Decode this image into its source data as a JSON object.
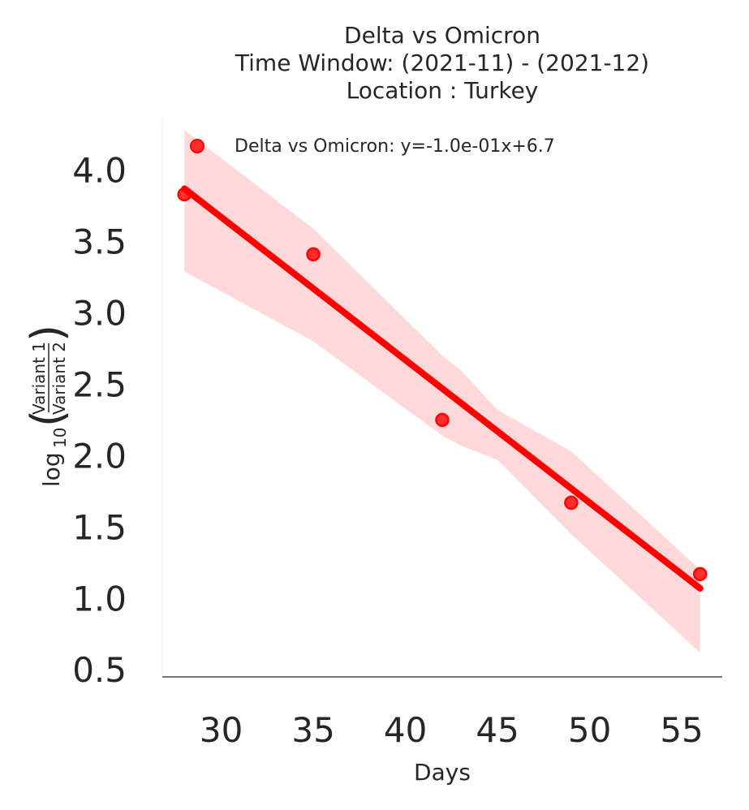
{
  "chart_data": {
    "type": "scatter",
    "title_lines": [
      "Delta vs Omicron",
      "Time Window: (2021-11) - (2021-12)",
      "Location : Turkey"
    ],
    "xlabel": "Days",
    "ylabel": {
      "prefix": "log",
      "subscript": "10",
      "numerator": "Variant 1",
      "denominator": "Variant 2"
    },
    "xlim": [
      26.8,
      57.2
    ],
    "ylim": [
      0.45,
      4.35
    ],
    "x_ticks": [
      30,
      35,
      40,
      45,
      50,
      55
    ],
    "y_ticks": [
      0.5,
      1.0,
      1.5,
      2.0,
      2.5,
      3.0,
      3.5,
      4.0
    ],
    "x_tick_labels": [
      "30",
      "35",
      "40",
      "45",
      "50",
      "55"
    ],
    "y_tick_labels": [
      "0.5",
      "1.0",
      "1.5",
      "2.0",
      "2.5",
      "3.0",
      "3.5",
      "4.0"
    ],
    "grid": false,
    "legend_position": "top-left",
    "color": "#ff0000",
    "series": [
      {
        "name": "Delta vs Omicron: y=-1.0e-01x+6.7",
        "points": [
          {
            "x": 28,
            "y": 3.83
          },
          {
            "x": 35,
            "y": 3.41
          },
          {
            "x": 42,
            "y": 2.25
          },
          {
            "x": 49,
            "y": 1.67
          },
          {
            "x": 56,
            "y": 1.17
          }
        ],
        "fit_line": {
          "x": [
            28,
            56
          ],
          "y": [
            3.87,
            1.07
          ]
        },
        "confidence_band": {
          "x": [
            28,
            35,
            42,
            43,
            45,
            49,
            56
          ],
          "upper": [
            4.28,
            3.59,
            2.7,
            2.6,
            2.32,
            2.03,
            1.2
          ],
          "lower": [
            3.29,
            2.8,
            2.14,
            2.07,
            1.97,
            1.45,
            0.62
          ]
        }
      }
    ]
  }
}
